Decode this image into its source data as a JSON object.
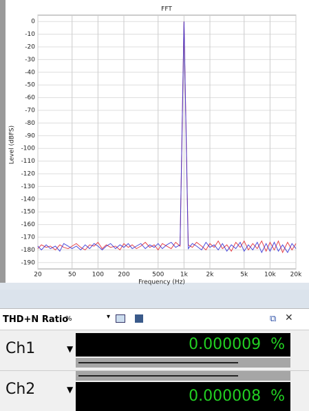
{
  "chart_data": {
    "type": "line",
    "title": "FFT",
    "xlabel": "Frequency (Hz)",
    "ylabel": "Level (dBFS)",
    "log_x": true,
    "grid": true,
    "xlim": [
      20,
      20000
    ],
    "ylim": [
      -195,
      5
    ],
    "xticks": [
      20,
      50,
      100,
      200,
      500,
      {
        "value": 1000,
        "label": "1k"
      },
      {
        "value": 2000,
        "label": "2k"
      },
      {
        "value": 5000,
        "label": "5k"
      },
      {
        "value": 10000,
        "label": "10k"
      },
      {
        "value": 20000,
        "label": "20k"
      }
    ],
    "yticks": [
      0,
      -10,
      -20,
      -30,
      -40,
      -50,
      -60,
      -70,
      -80,
      -90,
      -100,
      -110,
      -120,
      -130,
      -140,
      -150,
      -160,
      -170,
      -180,
      -190
    ],
    "x": [
      20,
      22,
      25,
      28,
      32,
      36,
      40,
      45,
      50,
      56,
      63,
      71,
      80,
      90,
      100,
      112,
      125,
      140,
      160,
      180,
      200,
      225,
      250,
      280,
      315,
      355,
      400,
      450,
      500,
      560,
      630,
      710,
      800,
      900,
      1000,
      1120,
      1250,
      1400,
      1600,
      1800,
      2000,
      2240,
      2500,
      2800,
      3150,
      3550,
      4000,
      4500,
      5000,
      5600,
      6300,
      7100,
      8000,
      9000,
      10000,
      11200,
      12500,
      14000,
      16000,
      18000,
      20000
    ],
    "series": [
      {
        "name": "Ch1",
        "color": "#e3242b",
        "values": [
          -179,
          -176,
          -178,
          -177,
          -180,
          -176,
          -178,
          -179,
          -177,
          -175,
          -178,
          -180,
          -176,
          -177,
          -174,
          -179,
          -176,
          -178,
          -177,
          -180,
          -175,
          -178,
          -176,
          -179,
          -177,
          -174,
          -178,
          -176,
          -180,
          -175,
          -177,
          -179,
          -174,
          -177,
          0,
          -176,
          -178,
          -174,
          -177,
          -180,
          -175,
          -178,
          -173,
          -179,
          -176,
          -181,
          -174,
          -178,
          -173,
          -180,
          -175,
          -179,
          -173,
          -181,
          -174,
          -180,
          -173,
          -182,
          -174,
          -180,
          -175
        ]
      },
      {
        "name": "Ch2",
        "color": "#2b2bd6",
        "values": [
          -177,
          -180,
          -176,
          -179,
          -177,
          -181,
          -175,
          -177,
          -179,
          -177,
          -180,
          -176,
          -179,
          -175,
          -177,
          -180,
          -177,
          -175,
          -179,
          -176,
          -178,
          -175,
          -179,
          -177,
          -175,
          -179,
          -176,
          -178,
          -175,
          -179,
          -176,
          -174,
          -178,
          -176,
          0,
          -179,
          -175,
          -177,
          -180,
          -174,
          -178,
          -176,
          -180,
          -175,
          -181,
          -176,
          -179,
          -174,
          -181,
          -176,
          -180,
          -174,
          -182,
          -175,
          -181,
          -174,
          -181,
          -176,
          -182,
          -175,
          -179
        ]
      }
    ]
  },
  "meter": {
    "title": "THD+N Ratio",
    "unit_select": "%",
    "channels": [
      {
        "name": "Ch1",
        "value": "0.000009",
        "unit": "%"
      },
      {
        "name": "Ch2",
        "value": "0.000008",
        "unit": "%"
      }
    ]
  }
}
